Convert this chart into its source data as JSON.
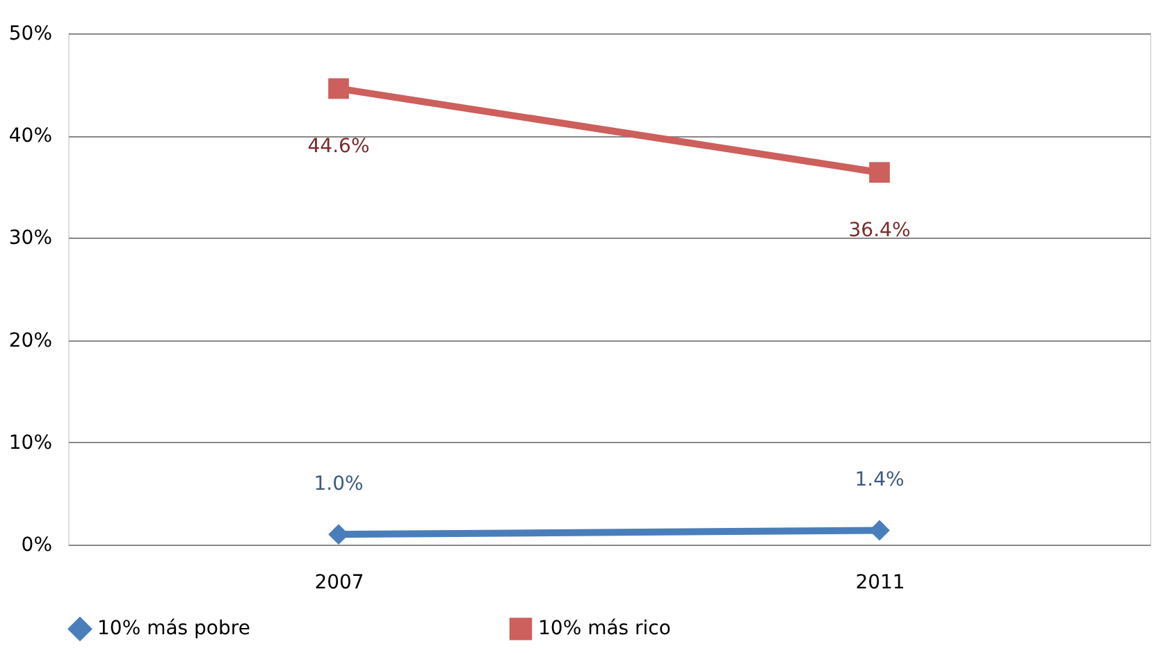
{
  "chart_data": {
    "type": "line",
    "categories": [
      "2007",
      "2011"
    ],
    "series": [
      {
        "name": "10% más pobre",
        "color": "#4a7ebb",
        "marker": "diamond",
        "values": [
          1.0,
          1.4
        ],
        "value_labels": [
          "1.0%",
          "1.4%"
        ]
      },
      {
        "name": "10% más rico",
        "color": "#cd5f5c",
        "marker": "square",
        "values": [
          44.6,
          36.4
        ],
        "value_labels": [
          "44.6%",
          "36.4%"
        ]
      }
    ],
    "ylim": [
      0,
      50
    ],
    "yticks": [
      {
        "value": 0,
        "label": "0%"
      },
      {
        "value": 10,
        "label": "10%"
      },
      {
        "value": 20,
        "label": "20%"
      },
      {
        "value": 30,
        "label": "30%"
      },
      {
        "value": 40,
        "label": "40%"
      },
      {
        "value": 50,
        "label": "50%"
      }
    ],
    "grid": "y",
    "legend": "bottom",
    "line_style": "solid"
  }
}
